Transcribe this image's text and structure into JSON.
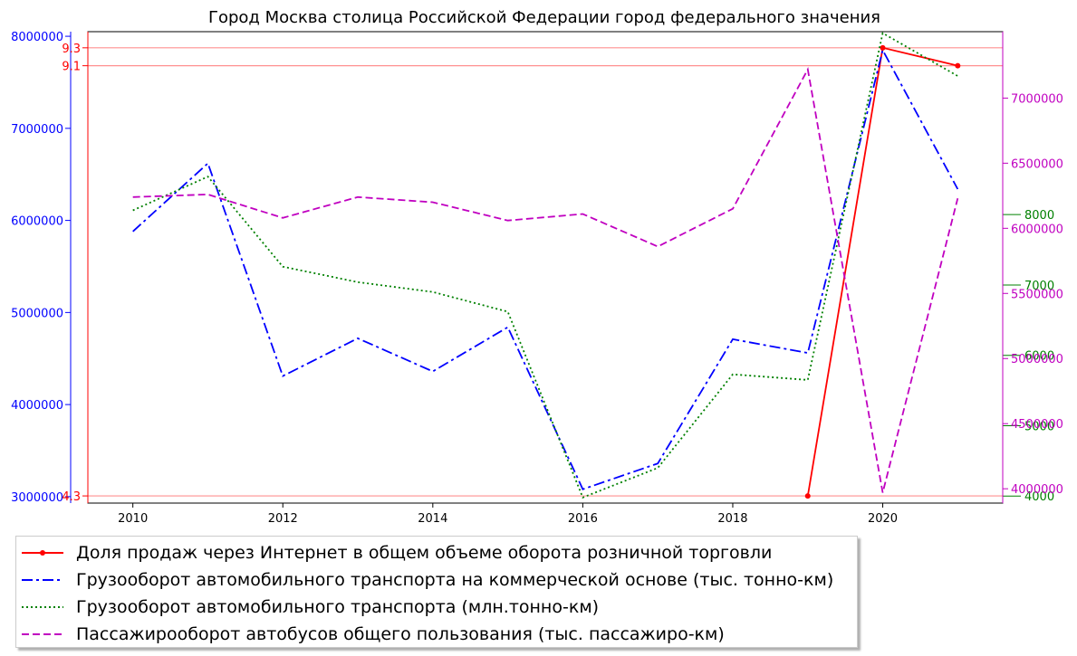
{
  "chart_data": {
    "type": "line",
    "title": "Город Москва столица Российской Федерации город федерального значения",
    "xlabel": "",
    "ylabel": "",
    "x_ticks": [
      "2010",
      "2012",
      "2014",
      "2016",
      "2018",
      "2020"
    ],
    "xlim": [
      2009.4,
      2021.6
    ],
    "grid": false,
    "legend_position": "bottom-left-outside",
    "axes": {
      "left": {
        "ylim": [
          2930000,
          8050000
        ],
        "ticks": [
          "3000000",
          "4000000",
          "5000000",
          "6000000",
          "7000000",
          "8000000"
        ],
        "color": "#0000ff"
      },
      "red_left": {
        "ylim": [
          4.22,
          9.48
        ],
        "ticks": [
          "4.3",
          "9.1",
          "9.3"
        ],
        "reference_lines": [
          4.3,
          9.1,
          9.3
        ],
        "color": "#ff0000"
      },
      "right_green": {
        "ylim": [
          3900,
          10600
        ],
        "ticks": [
          "4000",
          "5000",
          "6000",
          "7000",
          "8000"
        ],
        "color": "#008000"
      },
      "right_magenta": {
        "ylim": [
          3890000,
          7510000
        ],
        "ticks": [
          "4000000",
          "4500000",
          "5000000",
          "5500000",
          "6000000",
          "6500000",
          "7000000"
        ],
        "color": "#c000c0"
      }
    },
    "series": [
      {
        "name": "Доля продаж через Интернет в общем объеме оборота розничной торговли",
        "axis": "red_left",
        "color": "#ff0000",
        "style": "solid-dot",
        "x": [
          2019,
          2020,
          2021
        ],
        "values": [
          4.3,
          9.3,
          9.1
        ]
      },
      {
        "name": "Грузооборот автомобильного транспорта на коммерческой основе (тыс. тонно-км)",
        "axis": "left",
        "color": "#0000ff",
        "style": "dashdot",
        "x": [
          2010,
          2011,
          2012,
          2013,
          2014,
          2015,
          2016,
          2017,
          2018,
          2019,
          2020,
          2021
        ],
        "values": [
          5880000,
          6620000,
          4310000,
          4720000,
          4360000,
          4840000,
          3080000,
          3360000,
          4710000,
          4560000,
          7850000,
          6340000
        ]
      },
      {
        "name": "Грузооборот автомобильного транспорта (млн.тонно-км)",
        "axis": "right_green",
        "color": "#008000",
        "style": "dotted",
        "x": [
          2010,
          2011,
          2012,
          2013,
          2014,
          2015,
          2016,
          2017,
          2018,
          2019,
          2020,
          2021
        ],
        "values": [
          8060,
          8540,
          7260,
          7040,
          6900,
          6620,
          3980,
          4400,
          5730,
          5650,
          10580,
          9970
        ]
      },
      {
        "name": "Пассажирооборот автобусов общего пользования (тыс. пассажиро-км)",
        "axis": "right_magenta",
        "color": "#c000c0",
        "style": "dashed",
        "x": [
          2010,
          2011,
          2012,
          2013,
          2014,
          2015,
          2016,
          2017,
          2018,
          2019,
          2020,
          2021
        ],
        "values": [
          6240000,
          6260000,
          6080000,
          6240000,
          6200000,
          6060000,
          6110000,
          5860000,
          6150000,
          7220000,
          3970000,
          6230000
        ]
      }
    ]
  }
}
